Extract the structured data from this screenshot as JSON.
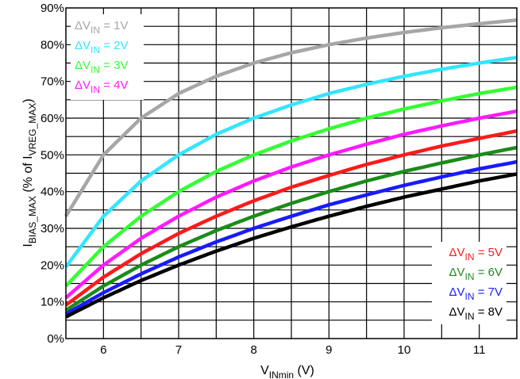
{
  "chart_data": {
    "type": "line",
    "title": "",
    "xlabel": {
      "main": "V",
      "sub": "INmin",
      "suffix": " (V)"
    },
    "ylabel": {
      "p1": "I",
      "p1sub": "BIAS_MAX",
      "p2": " (% of I",
      "p2sub": "VREG_MAX",
      "p3": ")"
    },
    "xlim": [
      5.5,
      11.5
    ],
    "ylim": [
      0,
      90
    ],
    "xticks": [
      6,
      7,
      8,
      9,
      10,
      11
    ],
    "yticks": [
      {
        "v": 0,
        "label": "0%"
      },
      {
        "v": 10,
        "label": "10%"
      },
      {
        "v": 20,
        "label": "20%"
      },
      {
        "v": 30,
        "label": "30%"
      },
      {
        "v": 40,
        "label": "40%"
      },
      {
        "v": 50,
        "label": "50%"
      },
      {
        "v": 60,
        "label": "60%"
      },
      {
        "v": 70,
        "label": "70%"
      },
      {
        "v": 80,
        "label": "80%"
      },
      {
        "v": 90,
        "label": "90%"
      }
    ],
    "grid": true,
    "x": [
      5.5,
      6,
      6.5,
      7,
      7.5,
      8,
      8.5,
      9,
      9.5,
      10,
      10.5,
      11,
      11.5
    ],
    "series": [
      {
        "name": "ΔV_IN = 1V",
        "color": "#a6a6a6",
        "legend_group": "top-left",
        "values": [
          33.3,
          50,
          60,
          66.7,
          71.4,
          75,
          77.8,
          80,
          81.8,
          83.3,
          84.6,
          85.7,
          86.7
        ]
      },
      {
        "name": "ΔV_IN = 2V",
        "color": "#33e5ff",
        "legend_group": "top-left",
        "values": [
          19.5,
          33.3,
          42.9,
          50,
          55.6,
          60,
          63.6,
          66.7,
          69.2,
          71.4,
          73.3,
          75,
          76.5
        ]
      },
      {
        "name": "ΔV_IN = 3V",
        "color": "#33ff33",
        "legend_group": "top-left",
        "values": [
          14.3,
          25,
          33.3,
          40,
          45.5,
          50,
          53.8,
          57.1,
          60,
          62.5,
          64.7,
          66.7,
          68.4
        ]
      },
      {
        "name": "ΔV_IN = 4V",
        "color": "#ff1aff",
        "legend_group": "top-left",
        "values": [
          11.1,
          20,
          27.3,
          33.3,
          38.5,
          42.9,
          46.7,
          50,
          52.9,
          55.6,
          57.9,
          60,
          61.9
        ]
      },
      {
        "name": "ΔV_IN = 5V",
        "color": "#ff1a1a",
        "legend_group": "bottom-right",
        "values": [
          9.1,
          16.7,
          23.1,
          28.6,
          33.3,
          37.5,
          41.2,
          44.4,
          47.4,
          50,
          52.4,
          54.5,
          56.5
        ]
      },
      {
        "name": "ΔV_IN = 6V",
        "color": "#1a8c1a",
        "legend_group": "bottom-right",
        "values": [
          7.7,
          14.3,
          20,
          25,
          29.4,
          33.3,
          36.8,
          40,
          42.9,
          45.5,
          47.8,
          50,
          52
        ]
      },
      {
        "name": "ΔV_IN = 7V",
        "color": "#1a1aff",
        "legend_group": "bottom-right",
        "values": [
          6.7,
          12.5,
          17.6,
          22.2,
          26.3,
          30,
          33.3,
          36.4,
          39.1,
          41.7,
          44,
          46.2,
          48.1
        ]
      },
      {
        "name": "ΔV_IN = 8V",
        "color": "#000000",
        "legend_group": "bottom-right",
        "values": [
          5.9,
          11.1,
          15.8,
          20,
          23.8,
          27.3,
          30.4,
          33.3,
          36,
          38.5,
          40.7,
          42.9,
          44.8
        ]
      }
    ],
    "legend": {
      "top_left": [
        {
          "delta": "ΔV",
          "sub": "IN",
          "rest": " = 1V",
          "color": "#a6a6a6"
        },
        {
          "delta": "ΔV",
          "sub": "IN",
          "rest": " = 2V",
          "color": "#33e5ff"
        },
        {
          "delta": "ΔV",
          "sub": "IN",
          "rest": " = 3V",
          "color": "#33ff33"
        },
        {
          "delta": "ΔV",
          "sub": "IN",
          "rest": " = 4V",
          "color": "#ff1aff"
        }
      ],
      "bottom_right": [
        {
          "delta": "ΔV",
          "sub": "IN",
          "rest": " = 5V",
          "color": "#ff1a1a"
        },
        {
          "delta": "ΔV",
          "sub": "IN",
          "rest": " = 6V",
          "color": "#1a8c1a"
        },
        {
          "delta": "ΔV",
          "sub": "IN",
          "rest": " = 7V",
          "color": "#1a1aff"
        },
        {
          "delta": "ΔV",
          "sub": "IN",
          "rest": " = 8V",
          "color": "#000000"
        }
      ]
    }
  }
}
